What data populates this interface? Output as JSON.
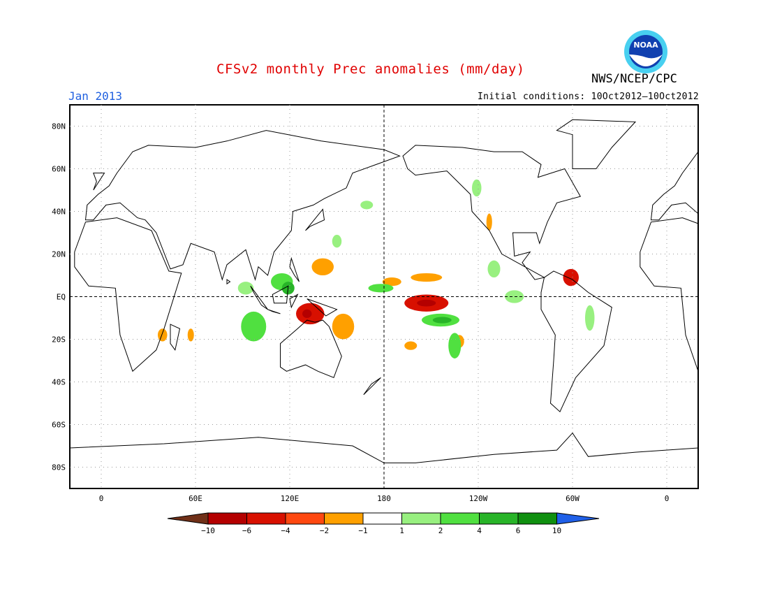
{
  "title": "CFSv2 monthly Prec anomalies (mm/day)",
  "month": "Jan 2013",
  "initial_conditions": "Initial conditions: 10Oct2012–10Oct2012",
  "agency": "NWS/NCEP/CPC",
  "logo_text": "NOAA",
  "colors": {
    "title": "#e00000",
    "month": "#2060e0",
    "frame": "#000000",
    "grid": "#999999"
  },
  "map": {
    "projection": "equirectangular",
    "lon_range": [
      -20,
      380
    ],
    "lat_range": [
      -90,
      90
    ],
    "lat_labels": [
      "80N",
      "60N",
      "40N",
      "20N",
      "EQ",
      "20S",
      "40S",
      "60S",
      "80S"
    ],
    "lon_labels": [
      "0",
      "60E",
      "120E",
      "180",
      "120W",
      "60W",
      "0"
    ]
  },
  "legend": {
    "labels": [
      "−10",
      "−6",
      "−4",
      "−2",
      "−1",
      "1",
      "2",
      "4",
      "6",
      "10"
    ],
    "colors": [
      "#703018",
      "#b40000",
      "#d81000",
      "#ff4810",
      "#ffa000",
      "#ffffff",
      "#98f080",
      "#50e040",
      "#28b428",
      "#109010",
      "#2060e8"
    ]
  },
  "anomalies": [
    {
      "lon": 207,
      "lat": -3,
      "rx": 14,
      "ry": 4,
      "level": -4
    },
    {
      "lon": 207,
      "lat": -3,
      "rx": 6,
      "ry": 1.6,
      "level": -6
    },
    {
      "lon": 133,
      "lat": -8,
      "rx": 9,
      "ry": 5,
      "level": -4
    },
    {
      "lon": 131,
      "lat": -8,
      "rx": 3,
      "ry": 2,
      "level": -6
    },
    {
      "lon": 141,
      "lat": 14,
      "rx": 7,
      "ry": 4,
      "level": -2
    },
    {
      "lon": 154,
      "lat": -14,
      "rx": 7,
      "ry": 6,
      "level": -2
    },
    {
      "lon": 185,
      "lat": 7,
      "rx": 6,
      "ry": 2,
      "level": -2
    },
    {
      "lon": 207,
      "lat": 9,
      "rx": 10,
      "ry": 2,
      "level": -2
    },
    {
      "lon": 299,
      "lat": 9,
      "rx": 5,
      "ry": 4,
      "level": -4
    },
    {
      "lon": 247,
      "lat": 35,
      "rx": 1.8,
      "ry": 4,
      "level": -2
    },
    {
      "lon": 39,
      "lat": -18,
      "rx": 3,
      "ry": 3,
      "level": -2
    },
    {
      "lon": 197,
      "lat": -23,
      "rx": 4,
      "ry": 2,
      "level": -2
    },
    {
      "lon": 228,
      "lat": -21,
      "rx": 3,
      "ry": 3,
      "level": -2
    },
    {
      "lon": 57,
      "lat": -18,
      "rx": 2,
      "ry": 3,
      "level": -2
    },
    {
      "lon": 115,
      "lat": 7,
      "rx": 7,
      "ry": 4,
      "level": 2
    },
    {
      "lon": 97,
      "lat": -14,
      "rx": 8,
      "ry": 7,
      "level": 2
    },
    {
      "lon": 119,
      "lat": 4,
      "rx": 4,
      "ry": 3,
      "level": 4
    },
    {
      "lon": 178,
      "lat": 4,
      "rx": 8,
      "ry": 2,
      "level": 2
    },
    {
      "lon": 216,
      "lat": -11,
      "rx": 12,
      "ry": 3,
      "level": 2
    },
    {
      "lon": 217,
      "lat": -11,
      "rx": 6,
      "ry": 1.5,
      "level": 4
    },
    {
      "lon": 225,
      "lat": -23,
      "rx": 4,
      "ry": 6,
      "level": 2
    },
    {
      "lon": 250,
      "lat": 13,
      "rx": 4,
      "ry": 4,
      "level": 1
    },
    {
      "lon": 92,
      "lat": 4,
      "rx": 5,
      "ry": 3,
      "level": 1
    },
    {
      "lon": 311,
      "lat": -10,
      "rx": 3,
      "ry": 6,
      "level": 1
    },
    {
      "lon": 263,
      "lat": 0,
      "rx": 6,
      "ry": 3,
      "level": 1
    },
    {
      "lon": 169,
      "lat": 43,
      "rx": 4,
      "ry": 2,
      "level": 1
    },
    {
      "lon": 150,
      "lat": 26,
      "rx": 3,
      "ry": 3,
      "level": 1
    },
    {
      "lon": 239,
      "lat": 51,
      "rx": 3,
      "ry": 4,
      "level": 1
    }
  ],
  "ocean_labels": {
    "marker": "equator-line"
  }
}
